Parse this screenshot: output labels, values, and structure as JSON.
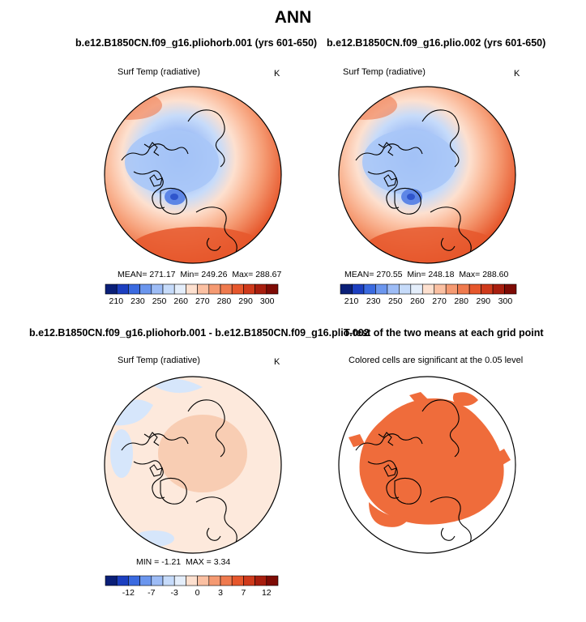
{
  "title": "ANN",
  "panels": {
    "top_left": {
      "case": "b.e12.B1850CN.f09_g16.pliohorb.001 (yrs 601-650)",
      "variable": "Surf Temp (radiative)",
      "units": "K",
      "mean_label": "MEAN=",
      "mean": "271.17",
      "min_label": "Min=",
      "min": "249.26",
      "max_label": "Max=",
      "max": "288.67"
    },
    "top_right": {
      "case": "b.e12.B1850CN.f09_g16.plio.002 (yrs 601-650)",
      "variable": "Surf Temp (radiative)",
      "units": "K",
      "mean_label": "MEAN=",
      "mean": "270.55",
      "min_label": "Min=",
      "min": "248.18",
      "max_label": "Max=",
      "max": "288.60"
    },
    "bottom_left": {
      "case": "b.e12.B1850CN.f09_g16.pliohorb.001 - b.e12.B1850CN.f09_g16.plio.002",
      "variable": "Surf Temp (radiative)",
      "units": "K",
      "min_label": "MIN =",
      "min": "-1.21",
      "max_label": "MAX =",
      "max": "3.34"
    },
    "bottom_right": {
      "case": "T-test of the two means at each grid point",
      "note": "Colored cells are significant at the 0.05 level"
    }
  },
  "chart_data": [
    {
      "type": "heatmap",
      "title": "b.e12.B1850CN.f09_g16.pliohorb.001 (yrs 601-650)",
      "projection": "north polar stereographic",
      "variable": "Surf Temp (radiative)",
      "units": "K",
      "mean": 271.17,
      "min": 249.26,
      "max": 288.67,
      "colorbar_ticks": [
        "210",
        "230",
        "250",
        "260",
        "270",
        "280",
        "290",
        "300"
      ],
      "colors": [
        "#0a1f78",
        "#1c3fc0",
        "#3a6ae0",
        "#6b96ee",
        "#9dbcf6",
        "#c6dbfa",
        "#e4eefb",
        "#fde0cf",
        "#fbc0a2",
        "#f59a72",
        "#ef7a4e",
        "#e6572c",
        "#cf3a1b",
        "#a81e0e",
        "#7e0b05"
      ]
    },
    {
      "type": "heatmap",
      "title": "b.e12.B1850CN.f09_g16.plio.002 (yrs 601-650)",
      "projection": "north polar stereographic",
      "variable": "Surf Temp (radiative)",
      "units": "K",
      "mean": 270.55,
      "min": 248.18,
      "max": 288.6,
      "colorbar_ticks": [
        "210",
        "230",
        "250",
        "260",
        "270",
        "280",
        "290",
        "300"
      ],
      "colors": [
        "#0a1f78",
        "#1c3fc0",
        "#3a6ae0",
        "#6b96ee",
        "#9dbcf6",
        "#c6dbfa",
        "#e4eefb",
        "#fde0cf",
        "#fbc0a2",
        "#f59a72",
        "#ef7a4e",
        "#e6572c",
        "#cf3a1b",
        "#a81e0e",
        "#7e0b05"
      ]
    },
    {
      "type": "heatmap",
      "title": "b.e12.B1850CN.f09_g16.pliohorb.001 - b.e12.B1850CN.f09_g16.plio.002",
      "projection": "north polar stereographic",
      "variable": "Surf Temp (radiative)",
      "units": "K",
      "min": -1.21,
      "max": 3.34,
      "colorbar_ticks": [
        "-12",
        "-7",
        "-3",
        "0",
        "3",
        "7",
        "12"
      ],
      "colors": [
        "#0a1f78",
        "#1c3fc0",
        "#3a6ae0",
        "#6b96ee",
        "#9dbcf6",
        "#c6dbfa",
        "#e4eefb",
        "#fde0cf",
        "#fbc0a2",
        "#f59a72",
        "#ef7a4e",
        "#e6572c",
        "#cf3a1b",
        "#a81e0e",
        "#7e0b05"
      ]
    },
    {
      "type": "heatmap",
      "title": "T-test of the two means at each grid point",
      "note": "Colored cells are significant at the 0.05 level",
      "projection": "north polar stereographic",
      "significance_level": 0.05,
      "significant_color": "#ef6c3b"
    }
  ]
}
